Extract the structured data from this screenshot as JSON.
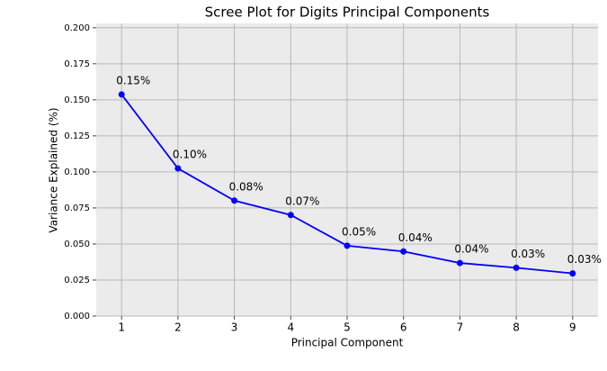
{
  "chart_data": {
    "type": "line",
    "title": "Scree Plot for Digits Principal Components",
    "x_label": "Principal Component",
    "y_label": "Variance Explained (%)",
    "x": [
      1,
      2,
      3,
      4,
      5,
      6,
      7,
      8,
      9
    ],
    "series": [
      {
        "color": "#0000ff",
        "values": [
          0.1537,
          0.1024,
          0.0801,
          0.0701,
          0.0488,
          0.0448,
          0.0368,
          0.0335,
          0.0296
        ],
        "value_labels": [
          "0.15%",
          "0.10%",
          "0.08%",
          "0.07%",
          "0.05%",
          "0.04%",
          "0.04%",
          "0.03%",
          "0.03%"
        ]
      }
    ],
    "xlim": [
      0.55,
      9.45
    ],
    "ylim": [
      0,
      0.203
    ],
    "xticks": [
      1,
      2,
      3,
      4,
      5,
      6,
      7,
      8,
      9
    ],
    "yticks": [
      {
        "value": 0,
        "label": "0.000"
      },
      {
        "value": 0.025,
        "label": "0.025"
      },
      {
        "value": 0.05,
        "label": "0.050"
      },
      {
        "value": 0.075,
        "label": "0.075"
      },
      {
        "value": 0.1,
        "label": "0.100"
      },
      {
        "value": 0.125,
        "label": "0.125"
      },
      {
        "value": 0.15,
        "label": "0.150"
      },
      {
        "value": 0.175,
        "label": "0.175"
      },
      {
        "value": 0.2,
        "label": "0.200"
      }
    ],
    "grid": true
  }
}
